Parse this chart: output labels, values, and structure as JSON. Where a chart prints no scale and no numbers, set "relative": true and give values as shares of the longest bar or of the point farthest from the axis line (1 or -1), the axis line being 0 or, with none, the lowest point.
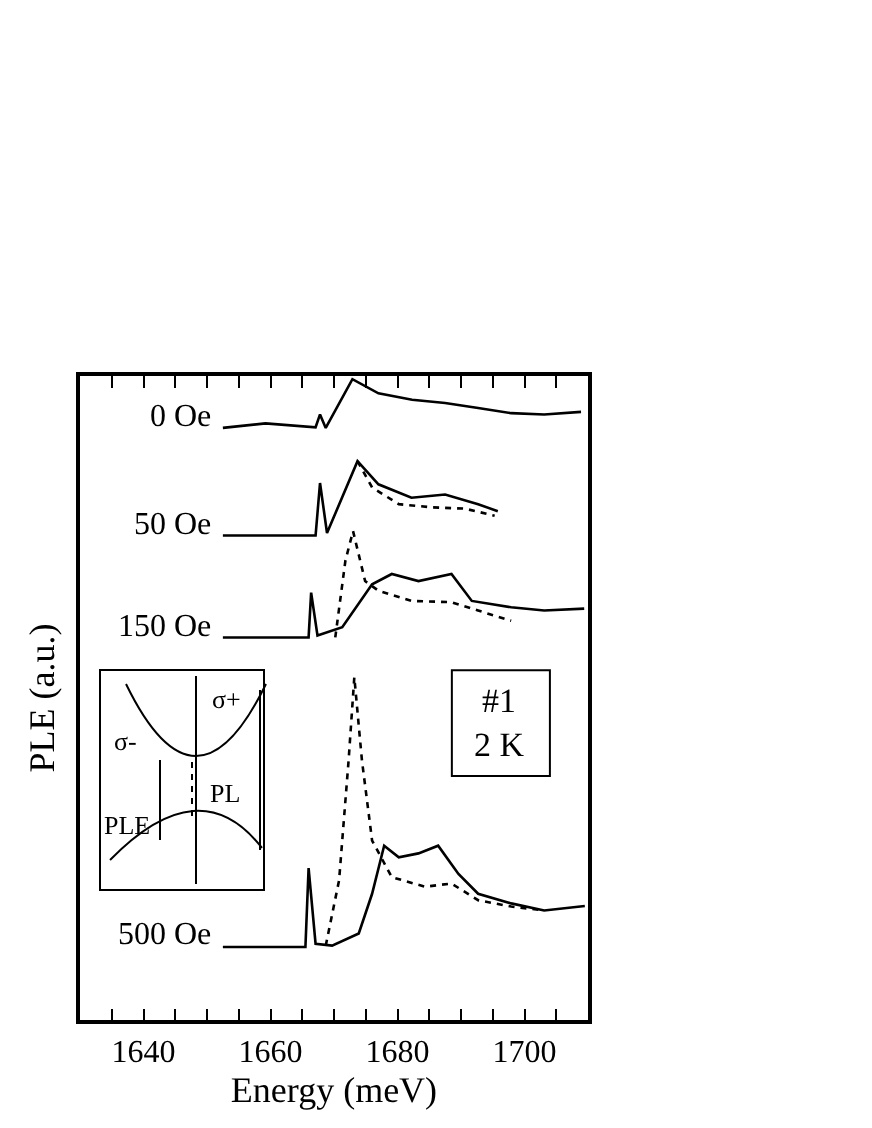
{
  "chart_data": {
    "type": "line",
    "relative": true,
    "xlabel": "Energy (meV)",
    "ylabel": "PLE (a.u.)",
    "xlim": [
      1630,
      1710
    ],
    "xticks": [
      {
        "value": 1635,
        "label": null
      },
      1640,
      {
        "value": 1645,
        "label": null
      },
      {
        "value": 1650,
        "label": null
      },
      {
        "value": 1655,
        "label": null
      },
      1660,
      {
        "value": 1665,
        "label": null
      },
      {
        "value": 1670,
        "label": null
      },
      {
        "value": 1675,
        "label": null
      },
      1680,
      {
        "value": 1685,
        "label": null
      },
      {
        "value": 1690,
        "label": null
      },
      {
        "value": 1695,
        "label": null
      },
      1700,
      {
        "value": 1705,
        "label": null
      }
    ],
    "marker": "none",
    "series": [
      {
        "name": "0 Oe",
        "color": "#000000",
        "line_style": "solid",
        "x": [
          1652.5,
          1659.2,
          1667.1,
          1667.8,
          1668.7,
          1672.9,
          1677,
          1682.3,
          1687.5,
          1692.7,
          1697.9,
          1703.1,
          1708.9
        ],
        "values": [
          0.924,
          0.931,
          0.925,
          0.945,
          0.924,
          1.0,
          0.978,
          0.968,
          0.963,
          0.955,
          0.947,
          0.945,
          0.949
        ]
      },
      {
        "name": "50 Oe",
        "color": "#000000",
        "line_style": "solid",
        "x": [
          1652.5,
          1667.1,
          1667.8,
          1668.9,
          1673.7,
          1677,
          1682.2,
          1687.5,
          1692.7,
          1695.8
        ],
        "values": [
          0.756,
          0.756,
          0.838,
          0.76,
          0.872,
          0.836,
          0.815,
          0.82,
          0.805,
          0.794
        ]
      },
      {
        "color": "#000000",
        "line_style": "dotted",
        "x": [
          1673.7,
          1676,
          1680.2,
          1685.4,
          1690.6,
          1695.3
        ],
        "values": [
          0.872,
          0.831,
          0.805,
          0.8,
          0.798,
          0.787
        ]
      },
      {
        "name": "150 Oe",
        "color": "#000000",
        "line_style": "solid",
        "x": [
          1652.5,
          1666.0,
          1666.4,
          1667.4,
          1671.3,
          1676,
          1679.1,
          1683.3,
          1688.5,
          1691.7,
          1697.9,
          1703.1,
          1709.4
        ],
        "values": [
          0.597,
          0.597,
          0.667,
          0.6,
          0.613,
          0.68,
          0.696,
          0.685,
          0.696,
          0.654,
          0.644,
          0.639,
          0.642
        ]
      },
      {
        "color": "#000000",
        "line_style": "dotted",
        "x": [
          1670.2,
          1671.8,
          1673,
          1674.9,
          1677,
          1682.2,
          1688.5,
          1692.7,
          1697.9
        ],
        "values": [
          0.597,
          0.717,
          0.763,
          0.685,
          0.67,
          0.654,
          0.652,
          0.639,
          0.623
        ]
      },
      {
        "name": "500 Oe",
        "color": "#000000",
        "line_style": "solid",
        "x": [
          1652.5,
          1665.5,
          1666,
          1667.1,
          1669.7,
          1673.9,
          1676,
          1677.9,
          1680.2,
          1683.3,
          1686.4,
          1689.6,
          1692.7,
          1697.9,
          1703.1,
          1709.5
        ],
        "values": [
          0.114,
          0.114,
          0.237,
          0.119,
          0.116,
          0.135,
          0.197,
          0.272,
          0.254,
          0.26,
          0.272,
          0.228,
          0.197,
          0.182,
          0.171,
          0.178
        ]
      },
      {
        "color": "#000000",
        "line_style": "dotted",
        "x": [
          1668.7,
          1670.8,
          1672.3,
          1673.2,
          1674.4,
          1676,
          1679.1,
          1684.3,
          1688.5,
          1692.7,
          1697.9,
          1703.1
        ],
        "values": [
          0.116,
          0.218,
          0.405,
          0.535,
          0.405,
          0.28,
          0.223,
          0.208,
          0.213,
          0.187,
          0.177,
          0.171
        ]
      }
    ],
    "annotations": [
      "#1\n2 K",
      "σ+",
      "σ-",
      "PL",
      "PLE"
    ]
  }
}
